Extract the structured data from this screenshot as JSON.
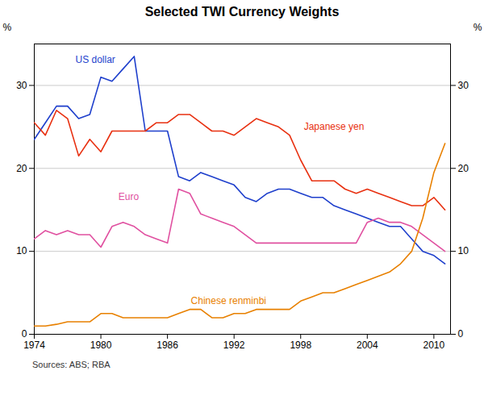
{
  "chart_data": {
    "type": "line",
    "title": "Selected TWI Currency Weights",
    "caption": "Sources: ABS; RBA",
    "ylabel": "%",
    "y2label": "%",
    "x": [
      1974,
      1975,
      1976,
      1977,
      1978,
      1979,
      1980,
      1981,
      1982,
      1983,
      1984,
      1985,
      1986,
      1987,
      1988,
      1989,
      1990,
      1991,
      1992,
      1993,
      1994,
      1995,
      1996,
      1997,
      1998,
      1999,
      2000,
      2001,
      2002,
      2003,
      2004,
      2005,
      2006,
      2007,
      2008,
      2009,
      2010,
      2011
    ],
    "series": [
      {
        "name": "US dollar",
        "color": "#1e3fcc",
        "values": [
          23.5,
          25.5,
          27.5,
          27.5,
          26.0,
          26.5,
          31.0,
          30.5,
          32.0,
          33.5,
          24.5,
          24.5,
          24.5,
          19.0,
          18.5,
          19.5,
          19.0,
          18.5,
          18.0,
          16.5,
          16.0,
          17.0,
          17.5,
          17.5,
          17.0,
          16.5,
          16.5,
          15.5,
          15.0,
          14.5,
          14.0,
          13.5,
          13.0,
          13.0,
          11.5,
          10.0,
          9.5,
          8.5
        ]
      },
      {
        "name": "Japanese yen",
        "color": "#e83010",
        "values": [
          25.5,
          24.0,
          27.0,
          26.0,
          21.5,
          23.5,
          22.0,
          24.5,
          24.5,
          24.5,
          24.5,
          25.5,
          25.5,
          26.5,
          26.5,
          25.5,
          24.5,
          24.5,
          24.0,
          25.0,
          26.0,
          25.5,
          25.0,
          24.0,
          21.0,
          18.5,
          18.5,
          18.5,
          17.5,
          17.0,
          17.5,
          17.0,
          16.5,
          16.0,
          15.5,
          15.5,
          16.5,
          15.0
        ]
      },
      {
        "name": "Euro",
        "color": "#e050a0",
        "values": [
          11.5,
          12.5,
          12.0,
          12.5,
          12.0,
          12.0,
          10.5,
          13.0,
          13.5,
          13.0,
          12.0,
          11.5,
          11.0,
          17.5,
          17.0,
          14.5,
          14.0,
          13.5,
          13.0,
          12.0,
          11.0,
          11.0,
          11.0,
          11.0,
          11.0,
          11.0,
          11.0,
          11.0,
          11.0,
          11.0,
          13.5,
          14.0,
          13.5,
          13.5,
          13.0,
          12.0,
          11.0,
          10.0
        ]
      },
      {
        "name": "Chinese renminbi",
        "color": "#e88000",
        "values": [
          1.0,
          1.0,
          1.2,
          1.5,
          1.5,
          1.5,
          2.5,
          2.5,
          2.0,
          2.0,
          2.0,
          2.0,
          2.0,
          2.5,
          3.0,
          3.0,
          2.0,
          2.0,
          2.5,
          2.5,
          3.0,
          3.0,
          3.0,
          3.0,
          4.0,
          4.5,
          5.0,
          5.0,
          5.5,
          6.0,
          6.5,
          7.0,
          7.5,
          8.5,
          10.0,
          14.0,
          19.5,
          23.0
        ]
      }
    ],
    "annotations": [
      {
        "text": "US dollar",
        "x": 1979.5,
        "y": 32.5
      },
      {
        "text": "Japanese yen",
        "x": 2001,
        "y": 24.5
      },
      {
        "text": "Euro",
        "x": 1982.5,
        "y": 16.0
      },
      {
        "text": "Chinese renminbi",
        "x": 1991.5,
        "y": 3.5
      }
    ],
    "xlim": [
      1974,
      2011.5
    ],
    "xticks": [
      1974,
      1980,
      1986,
      1992,
      1998,
      2004,
      2010
    ],
    "ylim": [
      0,
      35
    ],
    "yticks": [
      0,
      10,
      20,
      30
    ],
    "y2lim": [
      0,
      35
    ],
    "y2ticks": [
      0,
      10,
      20,
      30
    ],
    "grid": true
  }
}
